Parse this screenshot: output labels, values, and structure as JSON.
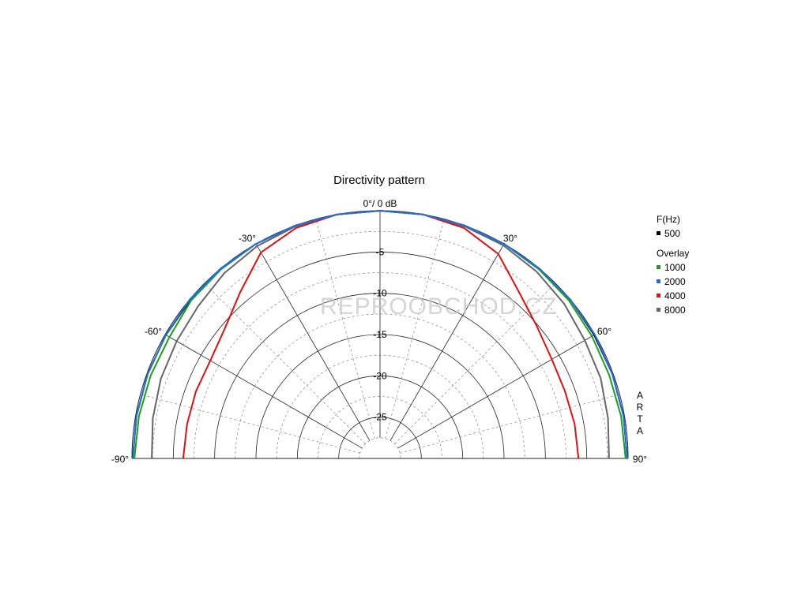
{
  "chart_data": {
    "type": "polar",
    "title": "Directivity pattern",
    "top_label": "0°/ 0 dB",
    "angle_labels": [
      "-90°",
      "-60°",
      "-30°",
      "30°",
      "60°",
      "90°"
    ],
    "radial_labels": [
      "-5",
      "-10",
      "-15",
      "-20",
      "-25"
    ],
    "radial_range_db": [
      -30,
      0
    ],
    "angle_range_deg": [
      -90,
      90
    ],
    "grid": true,
    "legend": {
      "header": "F(Hz)",
      "overlay_header": "Overlay",
      "placement": "right"
    },
    "side_label": "ARTA",
    "watermark": "REPROOBCHOD.CZ",
    "series": [
      {
        "name": "500",
        "color": "#000000",
        "angles_deg": [
          -90,
          -80,
          -70,
          -60,
          -50,
          -40,
          -30,
          -20,
          -10,
          0,
          10,
          20,
          30,
          40,
          50,
          60,
          70,
          80,
          90
        ],
        "values_db": [
          -0.1,
          -0.1,
          -0.1,
          -0.1,
          -0.1,
          0,
          0,
          0,
          0,
          0,
          0,
          0,
          0,
          0,
          0,
          -0.1,
          -0.1,
          -0.1,
          -0.1
        ]
      },
      {
        "name": "1000",
        "color": "#1aa01a",
        "angles_deg": [
          -90,
          -80,
          -70,
          -60,
          -50,
          -40,
          -30,
          -20,
          -10,
          0,
          10,
          20,
          30,
          40,
          50,
          60,
          70,
          80,
          90
        ],
        "values_db": [
          -0.3,
          -0.4,
          -0.5,
          -0.6,
          -0.2,
          -0.1,
          0,
          0,
          0,
          0,
          0,
          0,
          0,
          -0.1,
          -0.2,
          -0.4,
          -0.5,
          -0.4,
          -0.3
        ]
      },
      {
        "name": "2000",
        "color": "#1f6fe0",
        "angles_deg": [
          -90,
          -80,
          -70,
          -60,
          -50,
          -40,
          -30,
          -20,
          -10,
          0,
          10,
          20,
          30,
          40,
          50,
          60,
          70,
          80,
          90
        ],
        "values_db": [
          -0.1,
          -0.1,
          -0.1,
          -0.1,
          0,
          0,
          0,
          0,
          0,
          0,
          0,
          0,
          0,
          0,
          0,
          0,
          -0.1,
          -0.1,
          -0.1
        ]
      },
      {
        "name": "4000",
        "color": "#e01010",
        "angles_deg": [
          -90,
          -80,
          -70,
          -60,
          -50,
          -40,
          -30,
          -20,
          -10,
          0,
          10,
          20,
          30,
          40,
          50,
          60,
          70,
          80,
          90
        ],
        "values_db": [
          -6.2,
          -6.3,
          -6.3,
          -6.3,
          -5.5,
          -3.7,
          -1.2,
          -0.3,
          0,
          0,
          0,
          -0.3,
          -1.4,
          -3.8,
          -5.2,
          -6.0,
          -6.2,
          -6.1,
          -6.0
        ]
      },
      {
        "name": "8000",
        "color": "#666666",
        "angles_deg": [
          -90,
          -80,
          -70,
          -60,
          -50,
          -40,
          -30,
          -20,
          -10,
          0,
          10,
          20,
          30,
          40,
          50,
          60,
          70,
          80,
          90
        ],
        "values_db": [
          -2.4,
          -2.1,
          -1.8,
          -1.6,
          -1.3,
          -0.7,
          -0.3,
          -0.1,
          0,
          0,
          0,
          -0.1,
          -0.2,
          -0.5,
          -0.9,
          -1.4,
          -1.6,
          -2.0,
          -2.3
        ]
      }
    ]
  }
}
